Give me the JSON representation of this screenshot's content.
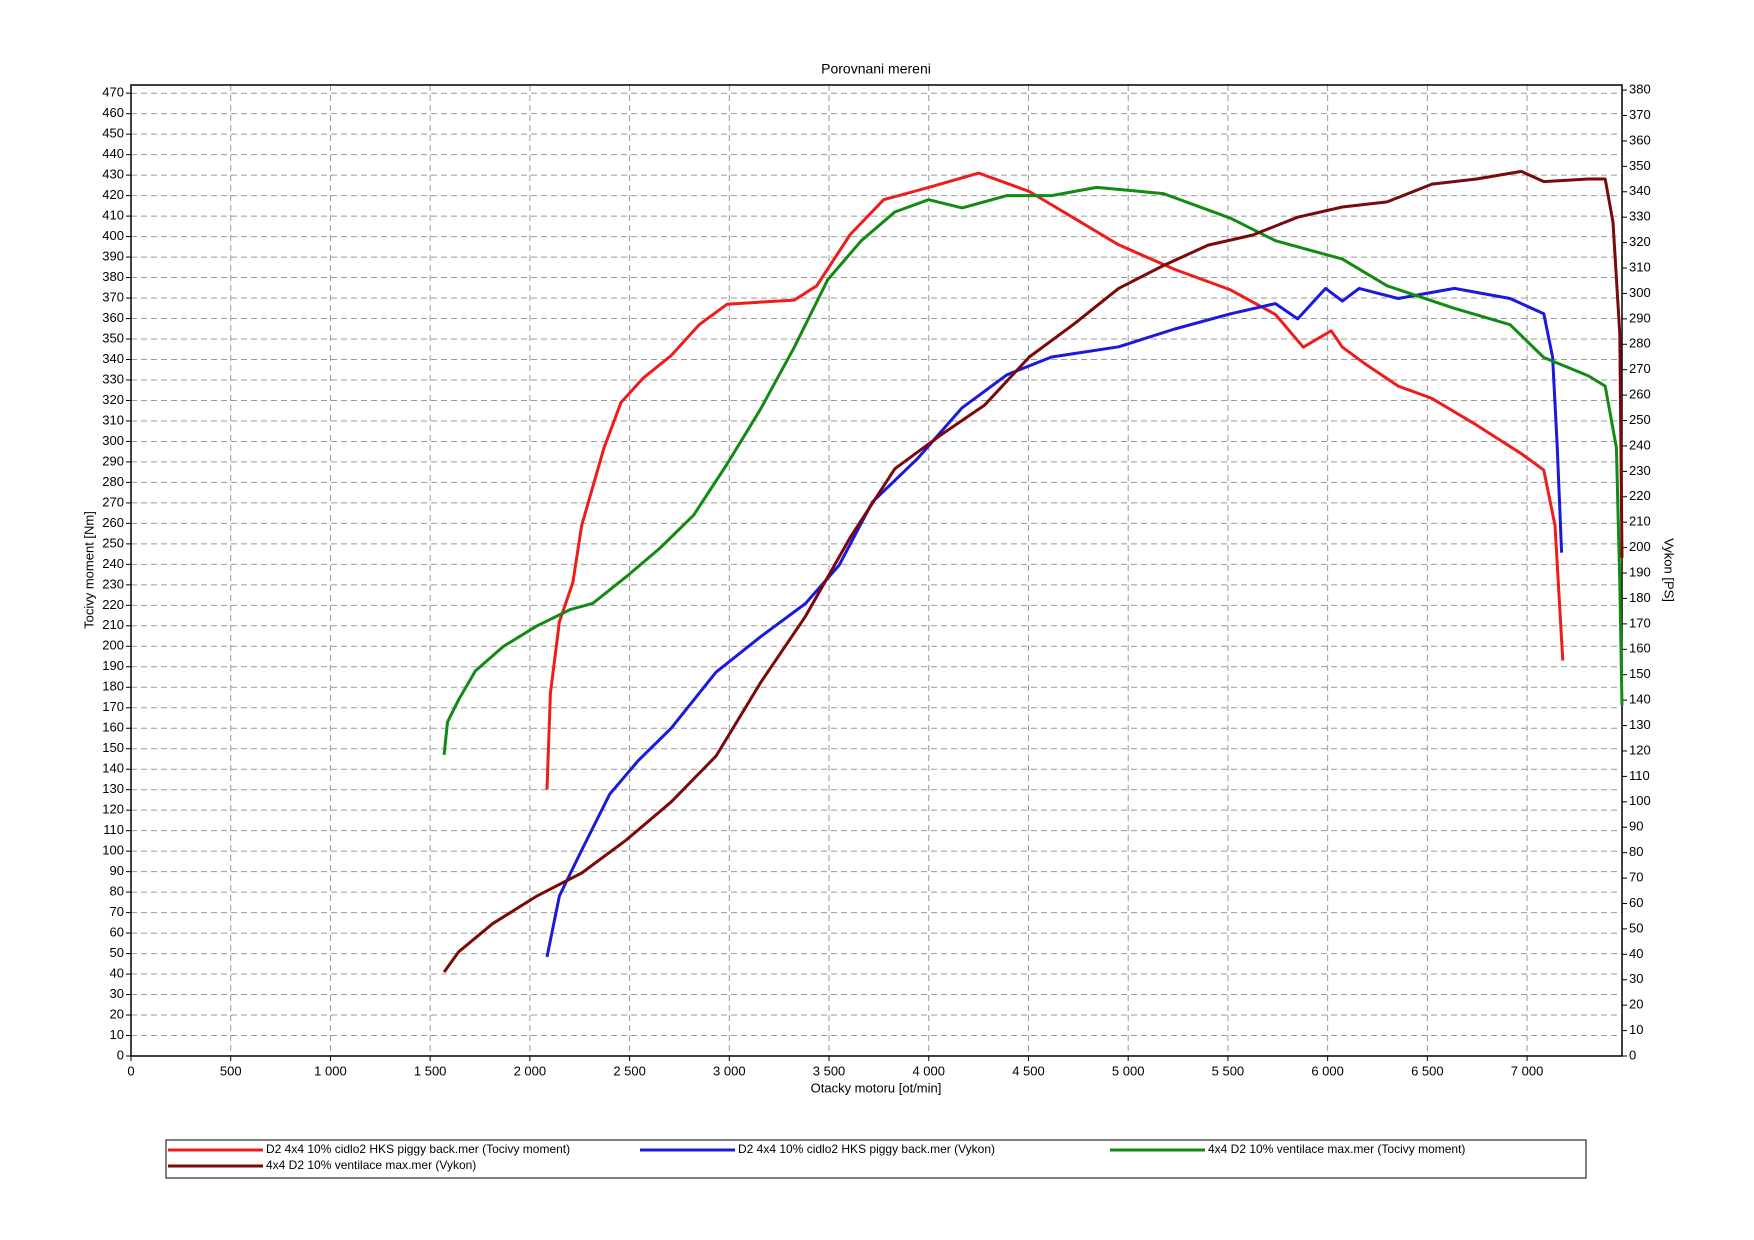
{
  "chart_data": {
    "type": "line",
    "title": "Porovnani mereni",
    "x_label": "Otacky motoru [ot/min]",
    "y_label": "Tocivy moment [Nm]",
    "y2_label": "Vykon [PS]",
    "xlim": [
      0,
      7476
    ],
    "ylim": [
      0,
      474
    ],
    "y2lim": [
      0,
      382
    ],
    "grid": true,
    "legend": "bottom",
    "xticks": [
      0,
      500,
      {
        "value": 1000,
        "label": "1 000"
      },
      {
        "value": 1500,
        "label": "1 500"
      },
      {
        "value": 2000,
        "label": "2 000"
      },
      {
        "value": 2500,
        "label": "2 500"
      },
      {
        "value": 3000,
        "label": "3 000"
      },
      {
        "value": 3500,
        "label": "3 500"
      },
      {
        "value": 4000,
        "label": "4 000"
      },
      {
        "value": 4500,
        "label": "4 500"
      },
      {
        "value": 5000,
        "label": "5 000"
      },
      {
        "value": 5500,
        "label": "5 500"
      },
      {
        "value": 6000,
        "label": "6 000"
      },
      {
        "value": 6500,
        "label": "6 500"
      },
      {
        "value": 7000,
        "label": "7 000"
      }
    ],
    "yticks": [
      0,
      10,
      20,
      30,
      40,
      50,
      60,
      70,
      80,
      90,
      100,
      110,
      120,
      130,
      140,
      150,
      160,
      170,
      180,
      190,
      200,
      210,
      220,
      230,
      240,
      250,
      260,
      270,
      280,
      290,
      300,
      310,
      320,
      330,
      340,
      350,
      360,
      370,
      380,
      390,
      400,
      410,
      420,
      430,
      440,
      450,
      460,
      470
    ],
    "y2ticks": [
      0,
      10,
      20,
      30,
      40,
      50,
      60,
      70,
      80,
      90,
      100,
      110,
      120,
      130,
      140,
      150,
      160,
      170,
      180,
      190,
      200,
      210,
      220,
      230,
      240,
      250,
      260,
      270,
      280,
      290,
      300,
      310,
      320,
      330,
      340,
      350,
      360,
      370,
      380
    ],
    "series": [
      {
        "name": "D2 4x4 10% cidlo2 HKS piggy back.mer  (Tocivy moment)",
        "color": "#ee1c1c",
        "axis": "y",
        "x": [
          2086,
          2103,
          2148,
          2215,
          2260,
          2372,
          2457,
          2569,
          2709,
          2849,
          2989,
          3158,
          3326,
          3438,
          3606,
          3774,
          3999,
          4251,
          4504,
          4729,
          4952,
          5233,
          5513,
          5738,
          5878,
          6018,
          6074,
          6186,
          6354,
          6523,
          6747,
          6971,
          7084,
          7140,
          7179
        ],
        "values": [
          130,
          177,
          212,
          231,
          259,
          297,
          319,
          331,
          342,
          357,
          367,
          368,
          369,
          376,
          401,
          418,
          424,
          431,
          422,
          409,
          396,
          384,
          374,
          362,
          346,
          354,
          346,
          338,
          327,
          321,
          308,
          294,
          286,
          259,
          193
        ]
      },
      {
        "name": "D2 4x4 10% cidlo2 HKS piggy back.mer  (Vykon)",
        "color": "#1a1adb",
        "axis": "y2",
        "x": [
          2086,
          2148,
          2260,
          2400,
          2541,
          2709,
          2933,
          3158,
          3382,
          3550,
          3718,
          3943,
          4167,
          4392,
          4616,
          4952,
          5233,
          5513,
          5738,
          5850,
          5990,
          6074,
          6158,
          6354,
          6635,
          6915,
          7084,
          7128,
          7151,
          7173
        ],
        "values": [
          39,
          63,
          81,
          103,
          116,
          129,
          151,
          165,
          178,
          193,
          218,
          235,
          255,
          268,
          275,
          279,
          286,
          292,
          296,
          290,
          302,
          297,
          302,
          298,
          302,
          298,
          292,
          275,
          240,
          198
        ]
      },
      {
        "name": "4x4 D2 10% ventilace max.mer  (Tocivy moment)",
        "color": "#138a13",
        "axis": "y",
        "x": [
          1570,
          1587,
          1643,
          1727,
          1868,
          2036,
          2204,
          2316,
          2484,
          2653,
          2821,
          2989,
          3158,
          3326,
          3494,
          3662,
          3830,
          3999,
          4167,
          4392,
          4616,
          4841,
          5177,
          5513,
          5738,
          6074,
          6298,
          6635,
          6915,
          7084,
          7308,
          7392,
          7448,
          7465,
          7476
        ],
        "values": [
          147,
          163,
          174,
          188,
          200,
          210,
          218,
          221,
          234,
          248,
          264,
          289,
          316,
          346,
          379,
          398,
          412,
          418,
          414,
          420,
          420,
          424,
          421,
          409,
          398,
          389,
          376,
          365,
          357,
          341,
          332,
          327,
          297,
          231,
          171
        ]
      },
      {
        "name": "4x4 D2 10% ventilace max.mer  (Vykon)",
        "color": "#7a0a0a",
        "axis": "y2",
        "x": [
          1570,
          1643,
          1812,
          2036,
          2260,
          2484,
          2709,
          2933,
          3158,
          3382,
          3606,
          3830,
          4055,
          4279,
          4504,
          4729,
          4952,
          5177,
          5401,
          5625,
          5850,
          6074,
          6298,
          6523,
          6747,
          6971,
          7084,
          7308,
          7392,
          7431,
          7465,
          7476
        ],
        "values": [
          33,
          41,
          52,
          63,
          72,
          85,
          100,
          118,
          147,
          173,
          204,
          231,
          244,
          256,
          275,
          288,
          302,
          311,
          319,
          323,
          330,
          334,
          336,
          343,
          345,
          348,
          344,
          345,
          345,
          328,
          284,
          196
        ]
      }
    ]
  }
}
